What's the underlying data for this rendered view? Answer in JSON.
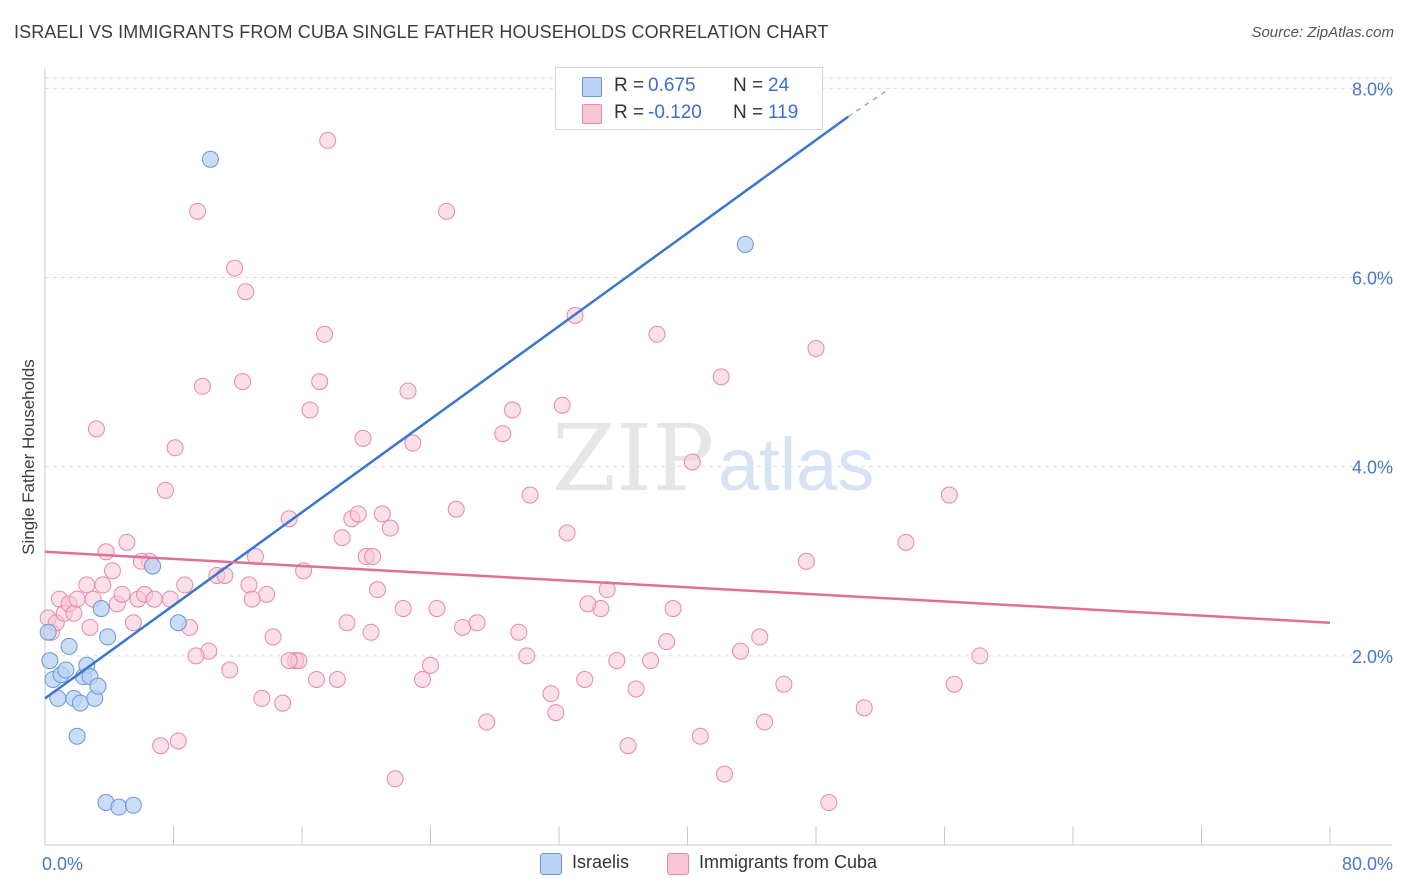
{
  "title": "ISRAELI VS IMMIGRANTS FROM CUBA SINGLE FATHER HOUSEHOLDS CORRELATION CHART",
  "source": "Source: ZipAtlas.com",
  "watermark": {
    "zip": "ZIP",
    "atlas": "atlas"
  },
  "legend": {
    "rows": [
      {
        "r_label": "R =",
        "r_value": "0.675",
        "n_label": "N =",
        "n_value": "24",
        "color": "#b9d1f3",
        "border": "#6a96d8"
      },
      {
        "r_label": "R =",
        "r_value": "-0.120",
        "n_label": "N =",
        "n_value": "119",
        "color": "#f8c6d6",
        "border": "#e888a8"
      }
    ]
  },
  "bottom_legend": {
    "series1": "Israelis",
    "series2": "Immigrants from Cuba"
  },
  "chart_data": {
    "type": "scatter",
    "title": "ISRAELI VS IMMIGRANTS FROM CUBA SINGLE FATHER HOUSEHOLDS CORRELATION CHART",
    "xlabel": "",
    "ylabel": "Single Father Households",
    "xlim": [
      0,
      80
    ],
    "ylim": [
      0,
      8.3
    ],
    "x_tick_labels": [
      "0.0%",
      "80.0%"
    ],
    "y_ticks": [
      2,
      4,
      6,
      8
    ],
    "y_tick_labels": [
      "2.0%",
      "4.0%",
      "6.0%",
      "8.0%"
    ],
    "grid": "horizontal dashed",
    "legend_position": "top-center",
    "colors": {
      "israelis": "#6a96d8",
      "israelis_fill": "#b9d1f3",
      "cuba": "#e888a8",
      "cuba_fill": "#f8c6d6",
      "israelis_line": "#3a76d0",
      "cuba_line": "#e06f96"
    },
    "series": [
      {
        "name": "Israelis",
        "trend": {
          "x0": 0,
          "y0": 1.55,
          "x1": 50,
          "y1": 7.7,
          "dash_to_x": 52.6,
          "dash_to_y": 8.0
        },
        "points": [
          [
            0.3,
            1.95
          ],
          [
            0.5,
            1.75
          ],
          [
            0.8,
            1.55
          ],
          [
            1.0,
            1.8
          ],
          [
            1.3,
            1.85
          ],
          [
            1.5,
            2.1
          ],
          [
            1.8,
            1.55
          ],
          [
            2.0,
            1.15
          ],
          [
            2.2,
            1.5
          ],
          [
            2.4,
            1.78
          ],
          [
            2.6,
            1.9
          ],
          [
            2.8,
            1.78
          ],
          [
            3.1,
            1.55
          ],
          [
            3.3,
            1.68
          ],
          [
            3.5,
            2.5
          ],
          [
            3.9,
            2.2
          ],
          [
            3.8,
            0.45
          ],
          [
            4.6,
            0.4
          ],
          [
            5.5,
            0.42
          ],
          [
            6.7,
            2.95
          ],
          [
            8.3,
            2.35
          ],
          [
            10.3,
            7.25
          ],
          [
            43.6,
            6.35
          ],
          [
            0.2,
            2.25
          ]
        ]
      },
      {
        "name": "Immigrants from Cuba",
        "trend": {
          "x0": 0,
          "y0": 3.1,
          "x1": 80,
          "y1": 2.35
        },
        "points": [
          [
            0.2,
            2.4
          ],
          [
            0.4,
            2.25
          ],
          [
            0.7,
            2.35
          ],
          [
            0.9,
            2.6
          ],
          [
            1.2,
            2.45
          ],
          [
            1.5,
            2.55
          ],
          [
            1.8,
            2.45
          ],
          [
            2.0,
            2.6
          ],
          [
            2.6,
            2.75
          ],
          [
            2.8,
            2.3
          ],
          [
            3.2,
            4.4
          ],
          [
            3.6,
            2.75
          ],
          [
            3.8,
            3.1
          ],
          [
            4.2,
            2.9
          ],
          [
            4.5,
            2.55
          ],
          [
            4.8,
            2.65
          ],
          [
            5.1,
            3.2
          ],
          [
            5.5,
            2.35
          ],
          [
            5.8,
            2.6
          ],
          [
            6.2,
            2.65
          ],
          [
            6.5,
            3.0
          ],
          [
            6.8,
            2.6
          ],
          [
            7.2,
            1.05
          ],
          [
            7.5,
            3.75
          ],
          [
            7.8,
            2.6
          ],
          [
            8.1,
            4.2
          ],
          [
            8.3,
            1.1
          ],
          [
            8.7,
            2.75
          ],
          [
            9.0,
            2.3
          ],
          [
            9.5,
            6.7
          ],
          [
            9.8,
            4.85
          ],
          [
            10.2,
            2.05
          ],
          [
            10.7,
            2.85
          ],
          [
            11.2,
            2.85
          ],
          [
            11.5,
            1.85
          ],
          [
            11.8,
            6.1
          ],
          [
            12.3,
            4.9
          ],
          [
            12.5,
            5.85
          ],
          [
            12.7,
            2.75
          ],
          [
            13.1,
            3.05
          ],
          [
            13.5,
            1.55
          ],
          [
            13.8,
            2.65
          ],
          [
            14.2,
            2.2
          ],
          [
            14.8,
            1.5
          ],
          [
            15.2,
            3.45
          ],
          [
            15.6,
            1.95
          ],
          [
            15.8,
            1.95
          ],
          [
            16.1,
            2.9
          ],
          [
            16.5,
            4.6
          ],
          [
            16.9,
            1.75
          ],
          [
            17.1,
            4.9
          ],
          [
            17.4,
            5.4
          ],
          [
            17.6,
            7.45
          ],
          [
            18.2,
            1.75
          ],
          [
            18.5,
            3.25
          ],
          [
            18.8,
            2.35
          ],
          [
            19.1,
            3.45
          ],
          [
            19.5,
            3.5
          ],
          [
            19.8,
            4.3
          ],
          [
            20.0,
            3.05
          ],
          [
            20.3,
            2.25
          ],
          [
            20.7,
            2.7
          ],
          [
            21.0,
            3.5
          ],
          [
            21.5,
            3.35
          ],
          [
            21.8,
            0.7
          ],
          [
            22.3,
            2.5
          ],
          [
            22.6,
            4.8
          ],
          [
            22.9,
            4.25
          ],
          [
            23.5,
            1.75
          ],
          [
            24.4,
            2.5
          ],
          [
            25.0,
            6.7
          ],
          [
            25.6,
            3.55
          ],
          [
            26.0,
            2.3
          ],
          [
            26.9,
            2.35
          ],
          [
            28.5,
            4.35
          ],
          [
            29.1,
            4.6
          ],
          [
            29.5,
            2.25
          ],
          [
            30.0,
            2.0
          ],
          [
            31.5,
            1.6
          ],
          [
            31.8,
            1.4
          ],
          [
            32.2,
            4.65
          ],
          [
            33.0,
            5.6
          ],
          [
            33.6,
            1.75
          ],
          [
            34.6,
            2.5
          ],
          [
            35.0,
            2.7
          ],
          [
            35.6,
            1.95
          ],
          [
            36.3,
            1.05
          ],
          [
            36.8,
            1.65
          ],
          [
            38.1,
            5.4
          ],
          [
            38.7,
            2.15
          ],
          [
            39.1,
            2.5
          ],
          [
            40.3,
            4.05
          ],
          [
            40.8,
            1.15
          ],
          [
            42.1,
            4.95
          ],
          [
            42.3,
            0.75
          ],
          [
            43.3,
            2.05
          ],
          [
            44.5,
            2.2
          ],
          [
            44.8,
            1.3
          ],
          [
            46.0,
            1.7
          ],
          [
            47.4,
            3.0
          ],
          [
            48.0,
            5.25
          ],
          [
            48.8,
            0.45
          ],
          [
            51.0,
            1.45
          ],
          [
            53.6,
            3.2
          ],
          [
            56.3,
            3.7
          ],
          [
            56.6,
            1.7
          ],
          [
            58.2,
            2.0
          ],
          [
            30.2,
            3.7
          ],
          [
            32.5,
            3.3
          ],
          [
            27.5,
            1.3
          ],
          [
            9.4,
            2.0
          ],
          [
            6.0,
            3.0
          ],
          [
            15.2,
            1.95
          ],
          [
            24.0,
            1.9
          ],
          [
            33.8,
            2.55
          ],
          [
            37.7,
            1.95
          ],
          [
            20.4,
            3.05
          ],
          [
            12.9,
            2.6
          ],
          [
            3.0,
            2.6
          ]
        ]
      }
    ]
  }
}
